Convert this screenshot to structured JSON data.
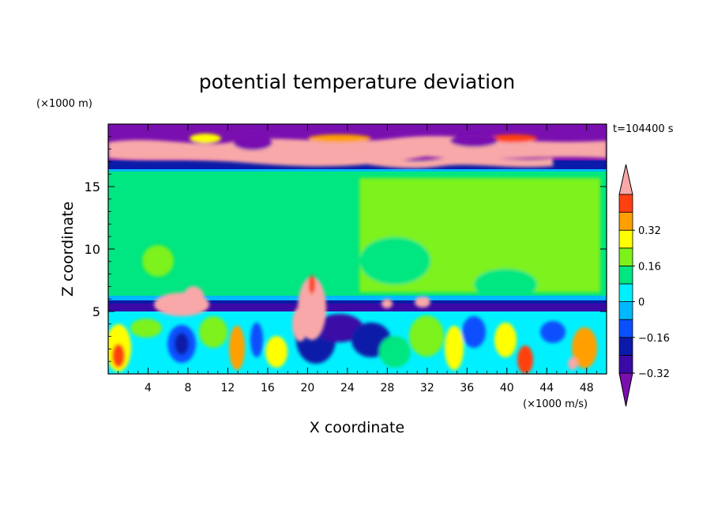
{
  "chart_data": {
    "type": "heatmap",
    "title": "potential temperature deviation",
    "xlabel": "X coordinate",
    "ylabel": "Z coordinate",
    "x_unit": "(×1000 m/s)",
    "y_unit": "(×1000 m)",
    "time_label": "t=104400 s",
    "xlim": [
      0,
      50
    ],
    "ylim": [
      0,
      20
    ],
    "x_ticks": [
      4,
      8,
      12,
      16,
      20,
      24,
      28,
      32,
      36,
      40,
      44,
      48
    ],
    "y_ticks": [
      5,
      10,
      15
    ],
    "colorbar": {
      "labels": [
        "0.32",
        "0.16",
        "0",
        "−0.16",
        "−0.32"
      ],
      "label_values": [
        0.32,
        0.16,
        0,
        -0.16,
        -0.32
      ],
      "levels": [
        -0.4,
        -0.32,
        -0.24,
        -0.16,
        -0.08,
        0,
        0.08,
        0.16,
        0.24,
        0.32,
        0.4
      ],
      "colors": [
        "#7a0fb0",
        "#3a0aa6",
        "#0b1aa8",
        "#0a50ff",
        "#00b8ff",
        "#00f0ff",
        "#00e680",
        "#7df21a",
        "#ffff00",
        "#ffa000",
        "#ff4010",
        "#f8a8a8"
      ]
    },
    "bands": [
      {
        "z": [
          0,
          5.5
        ],
        "value_range": [
          -0.32,
          0.4
        ],
        "description_color": "mixed"
      },
      {
        "z": [
          5.5,
          6.4
        ],
        "value_range": [
          -0.4,
          -0.16
        ]
      },
      {
        "z": [
          6.4,
          16.0
        ],
        "value_range": [
          0,
          0.08
        ]
      },
      {
        "z": [
          16.0,
          16.6
        ],
        "value_range": [
          -0.4,
          -0.24
        ]
      },
      {
        "z": [
          16.6,
          20
        ],
        "value_range": [
          -0.4,
          0.4
        ]
      }
    ]
  }
}
